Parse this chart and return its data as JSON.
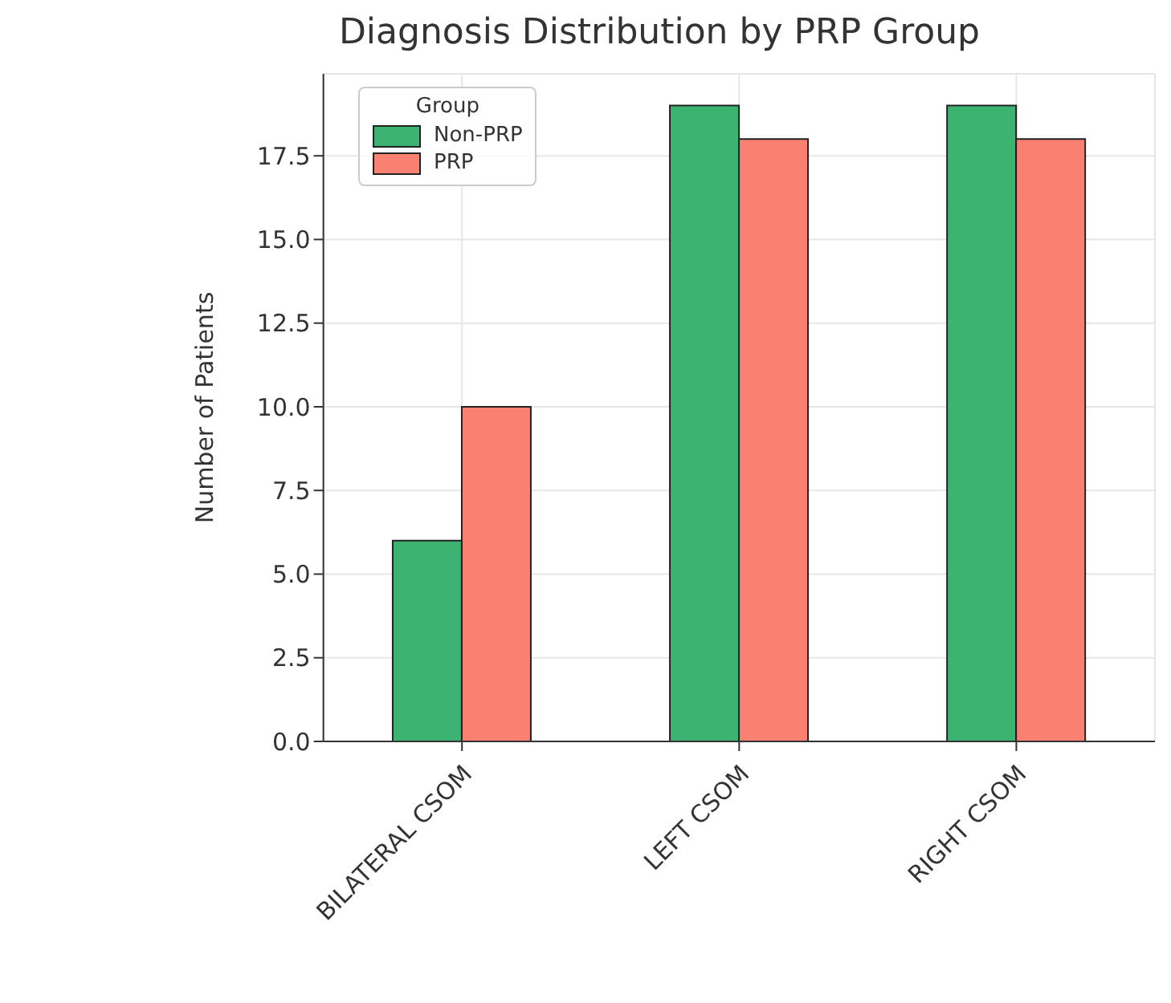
{
  "chart_data": {
    "type": "bar",
    "title": "Diagnosis Distribution by PRP Group",
    "ylabel": "Number of Patients",
    "legend_title": "Group",
    "categories": [
      "BILATERAL CSOM",
      "LEFT CSOM",
      "RIGHT CSOM"
    ],
    "series": [
      {
        "name": "Non-PRP",
        "color": "#3cb371",
        "values": [
          6,
          19,
          19
        ]
      },
      {
        "name": "PRP",
        "color": "#fa8072",
        "values": [
          10,
          18,
          18
        ]
      }
    ],
    "ylim": [
      0,
      19.95
    ],
    "yticks": [
      {
        "value": 0,
        "label": "0.0"
      },
      2.5,
      {
        "value": 5,
        "label": "5.0"
      },
      7.5,
      {
        "value": 10,
        "label": "10.0"
      },
      12.5,
      {
        "value": 15,
        "label": "15.0"
      },
      17.5
    ],
    "grid": true,
    "legend": "top left"
  }
}
